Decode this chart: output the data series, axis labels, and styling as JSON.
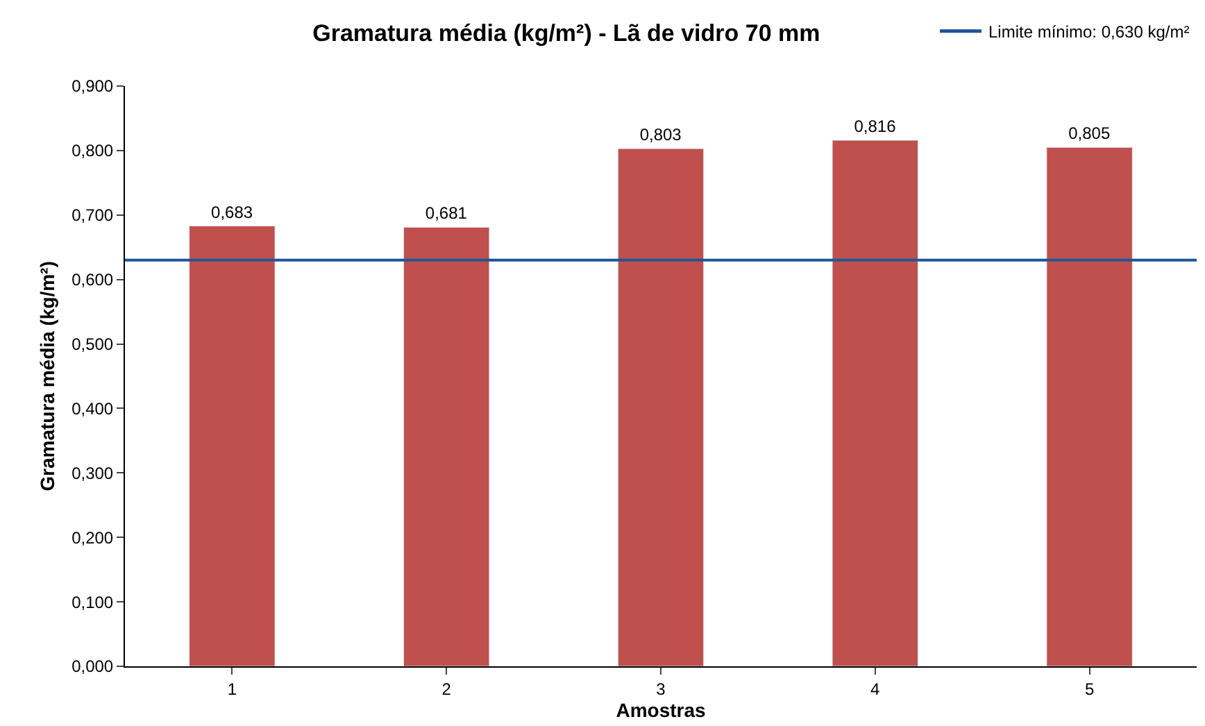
{
  "chart_data": {
    "type": "bar",
    "title": "Gramatura média (kg/m²) - Lã de vidro 70 mm",
    "xlabel": "Amostras",
    "ylabel": "Gramatura média (kg/m²)",
    "categories": [
      "1",
      "2",
      "3",
      "4",
      "5"
    ],
    "values": [
      0.683,
      0.681,
      0.803,
      0.816,
      0.805
    ],
    "color": "#c0504d",
    "value_labels": [
      "0,683",
      "0,681",
      "0,803",
      "0,816",
      "0,805"
    ],
    "ylim": [
      0,
      0.9
    ],
    "yticks": [
      {
        "value": 0,
        "label": "0,000"
      },
      {
        "value": 0.1,
        "label": "0,100"
      },
      {
        "value": 0.2,
        "label": "0,200"
      },
      {
        "value": 0.3,
        "label": "0,300"
      },
      {
        "value": 0.4,
        "label": "0,400"
      },
      {
        "value": 0.5,
        "label": "0,500"
      },
      {
        "value": 0.6,
        "label": "0,600"
      },
      {
        "value": 0.7,
        "label": "0,700"
      },
      {
        "value": 0.8,
        "label": "0,800"
      },
      {
        "value": 0.9,
        "label": "0,900"
      }
    ],
    "ref_lines": [
      {
        "axis": "y",
        "value": 0.63,
        "label": "Limite mínimo: 0,630 kg/m²",
        "color": "#1f5597",
        "line_style": "solid"
      }
    ],
    "legend": "top right"
  }
}
